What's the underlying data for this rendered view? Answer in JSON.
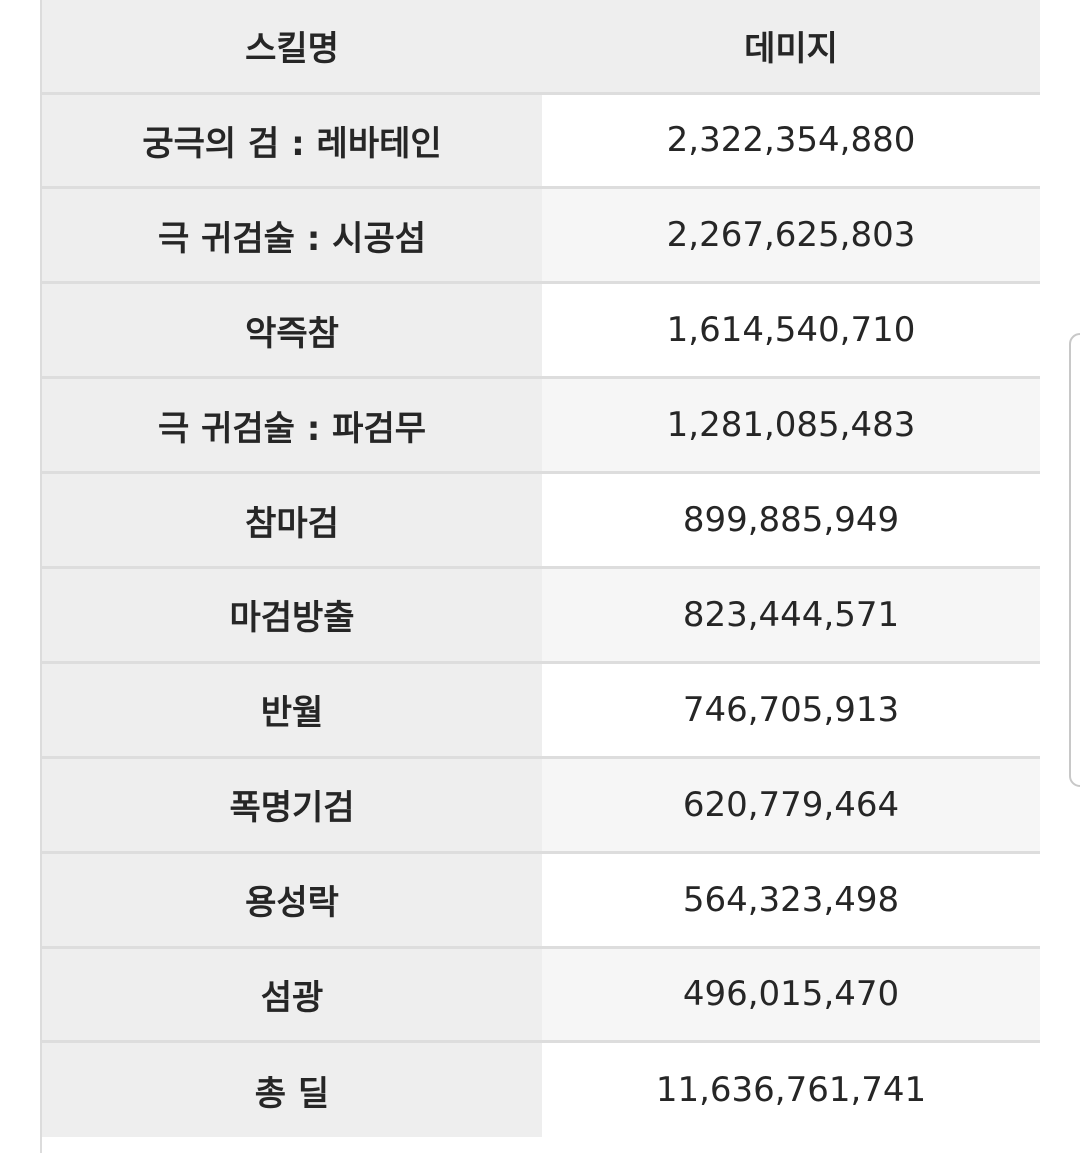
{
  "table": {
    "headers": {
      "skill": "스킬명",
      "damage": "데미지"
    },
    "rows": [
      {
        "skill": "궁극의 검 : 레바테인",
        "damage": "2,322,354,880"
      },
      {
        "skill": "극 귀검술 : 시공섬",
        "damage": "2,267,625,803"
      },
      {
        "skill": "악즉참",
        "damage": "1,614,540,710"
      },
      {
        "skill": "극 귀검술 : 파검무",
        "damage": "1,281,085,483"
      },
      {
        "skill": "참마검",
        "damage": "899,885,949"
      },
      {
        "skill": "마검방출",
        "damage": "823,444,571"
      },
      {
        "skill": "반월",
        "damage": "746,705,913"
      },
      {
        "skill": "폭명기검",
        "damage": "620,779,464"
      },
      {
        "skill": "용성락",
        "damage": "564,323,498"
      },
      {
        "skill": "섬광",
        "damage": "496,015,470"
      },
      {
        "skill": "총 딜",
        "damage": "11,636,761,741"
      }
    ]
  },
  "colors": {
    "header_bg": "#eeeeee",
    "skill_cell_bg": "#eeeeee",
    "damage_cell_bg": "#ffffff",
    "damage_cell_alt_bg": "#f6f6f6",
    "border": "#dddddd",
    "text": "#262626"
  }
}
